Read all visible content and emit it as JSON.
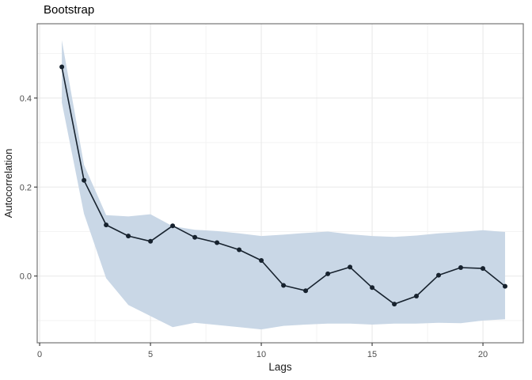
{
  "chart_data": {
    "type": "line",
    "title": "Bootstrap",
    "xlabel": "Lags",
    "ylabel": "Autocorrelation",
    "x": [
      1,
      2,
      3,
      4,
      5,
      6,
      7,
      8,
      9,
      10,
      11,
      12,
      13,
      14,
      15,
      16,
      17,
      18,
      19,
      20,
      21
    ],
    "series": [
      {
        "name": "autocorrelation",
        "values": [
          0.47,
          0.215,
          0.115,
          0.09,
          0.078,
          0.113,
          0.087,
          0.075,
          0.059,
          0.035,
          -0.021,
          -0.033,
          0.005,
          0.02,
          -0.026,
          -0.063,
          -0.045,
          0.002,
          0.019,
          0.017,
          -0.023
        ]
      }
    ],
    "band": {
      "name": "bootstrap-confidence-band",
      "upper": [
        0.53,
        0.25,
        0.137,
        0.134,
        0.139,
        0.112,
        0.104,
        0.101,
        0.096,
        0.09,
        0.093,
        0.097,
        0.1,
        0.094,
        0.09,
        0.088,
        0.091,
        0.096,
        0.099,
        0.103,
        0.099
      ],
      "lower": [
        0.39,
        0.14,
        -0.005,
        -0.065,
        -0.09,
        -0.115,
        -0.105,
        -0.11,
        -0.115,
        -0.12,
        -0.112,
        -0.109,
        -0.107,
        -0.107,
        -0.109,
        -0.107,
        -0.107,
        -0.105,
        -0.106,
        -0.1,
        -0.097
      ]
    },
    "xlim": [
      -0.11,
      21.82
    ],
    "ylim": [
      -0.15,
      0.567
    ],
    "x_ticks": [
      0,
      5,
      10,
      15,
      20
    ],
    "x_tick_labels": [
      "0",
      "5",
      "10",
      "15",
      "20"
    ],
    "x_minor": [
      2.5,
      7.5,
      12.5,
      17.5
    ],
    "y_ticks": [
      0.0,
      0.2,
      0.4
    ],
    "y_tick_labels": [
      "0.0",
      "0.2",
      "0.4"
    ],
    "y_minor": [
      -0.1,
      0.1,
      0.3,
      0.5
    ],
    "grid": "major+minor",
    "legend": "none",
    "colors": {
      "band": "#c9d7e6",
      "line": "#17222e",
      "point": "#17222e",
      "grid_major": "#e8e8e8",
      "grid_minor": "#f3f3f3",
      "border": "#767676",
      "tick": "#333333",
      "tick_label": "#4d4d4d",
      "bg": "#ffffff"
    }
  }
}
